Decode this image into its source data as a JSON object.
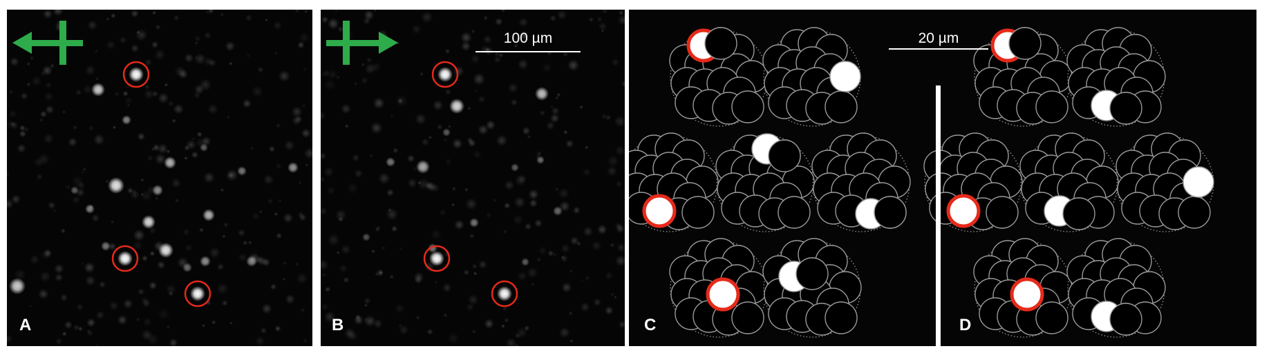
{
  "panels": {
    "A": {
      "label": "A",
      "arrow": "left"
    },
    "B": {
      "label": "B",
      "arrow": "right",
      "scale_bar": "100 µm"
    },
    "C": {
      "label": "C",
      "scale_bar": "20 µm"
    },
    "D": {
      "label": "D"
    }
  },
  "colors": {
    "background": "#050505",
    "highlight_ring": "#e62a1a",
    "direction_arrow": "#2eab4a",
    "outline": "#9a9a9a"
  }
}
